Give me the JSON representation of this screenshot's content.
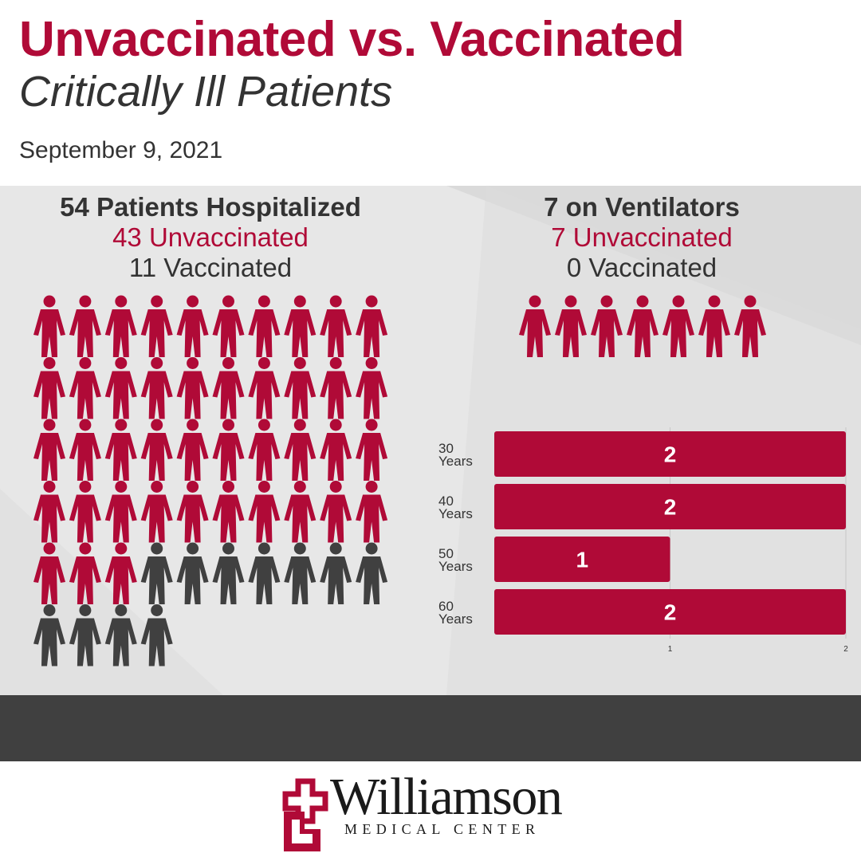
{
  "header": {
    "title": "Unvaccinated vs. Vaccinated",
    "subtitle": "Critically Ill Patients",
    "date": "September 9, 2021"
  },
  "hospitalized": {
    "heading": "54 Patients Hospitalized",
    "unvaccinated_label": "43 Unvaccinated",
    "vaccinated_label": "11 Vaccinated",
    "unvaccinated_count": 43,
    "vaccinated_count": 11
  },
  "ventilators": {
    "heading": "7 on Ventilators",
    "unvaccinated_label": "7 Unvaccinated",
    "vaccinated_label": "0 Vaccinated",
    "unvaccinated_count": 7,
    "vaccinated_count": 0
  },
  "colors": {
    "unvaccinated": "#b00a37",
    "vaccinated": "#404040",
    "panel": "#e7e7e7",
    "footer": "#404040"
  },
  "chart_data": {
    "type": "bar",
    "orientation": "horizontal",
    "categories": [
      [
        "30",
        "Years"
      ],
      [
        "40",
        "Years"
      ],
      [
        "50",
        "Years"
      ],
      [
        "60",
        "Years"
      ]
    ],
    "values": [
      2,
      2,
      1,
      2
    ],
    "data_labels": [
      "2",
      "2",
      "1",
      "2"
    ],
    "xticks": [
      "1",
      "2"
    ],
    "xlim": [
      0,
      2
    ],
    "grid": true,
    "title": "",
    "xlabel": "",
    "ylabel": ""
  },
  "logo": {
    "name": "Williamson",
    "tagline": "MEDICAL CENTER",
    "icon": "cross-mark-icon"
  }
}
